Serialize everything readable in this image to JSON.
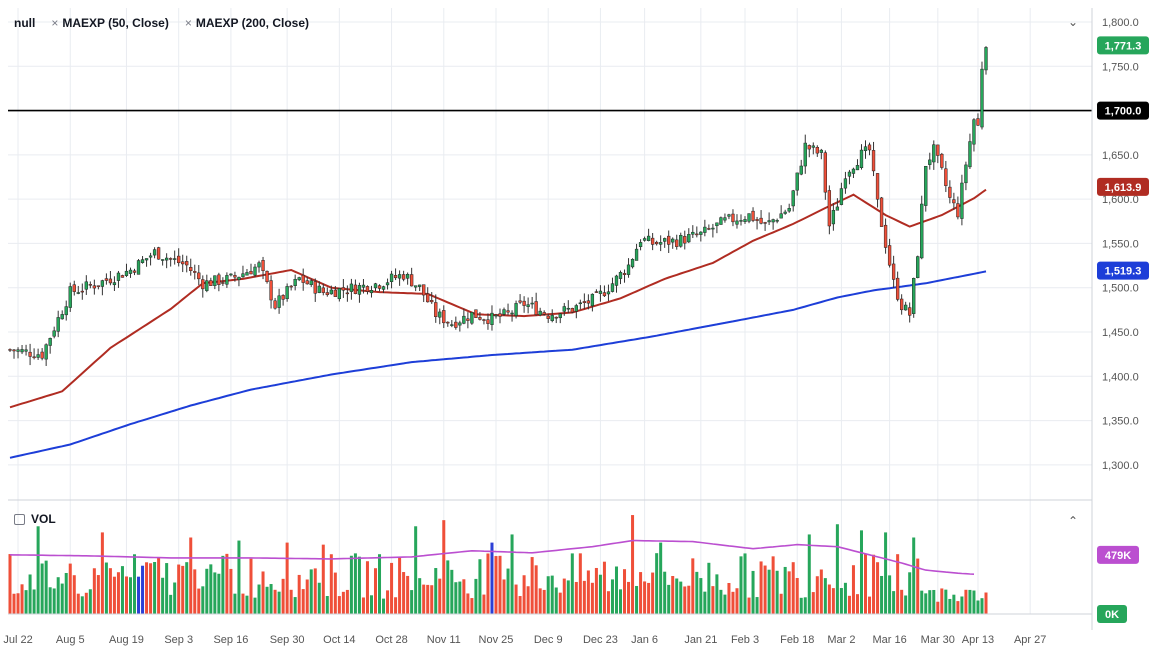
{
  "legend": {
    "symbol": "null",
    "ma1": "MAEXP (50, Close)",
    "ma2": "MAEXP (200, Close)",
    "remove_glyph": "×"
  },
  "volume_label": "VOL",
  "icons": {
    "collapse_main": "chevron-down-icon",
    "collapse_volume": "chevron-up-icon"
  },
  "colors": {
    "up": "#26a65b",
    "down": "#ef4f39",
    "neutral": "#2b3fd6",
    "ma50": "#b02c22",
    "ma200": "#1d3ed8",
    "vol_ma": "#bb4fd0",
    "line": "#000000",
    "grid": "#e9ecf1"
  },
  "badges": {
    "last": "1,771.3",
    "line_1700": "1,700.0",
    "ma50": "1,613.9",
    "ma200": "1,519.3",
    "vol_ma": "479K",
    "vol_zero": "0K"
  },
  "chart_data": {
    "type": "candlestick",
    "y_axis": {
      "range": [
        1275,
        1800
      ],
      "ticks": [
        "1,800.0",
        "1,750.0",
        "1,700.0",
        "1,650.0",
        "1,600.0",
        "1,550.0",
        "1,500.0",
        "1,450.0",
        "1,400.0",
        "1,350.0",
        "1,300.0"
      ],
      "tick_values": [
        1800,
        1750,
        1700,
        1650,
        1600,
        1550,
        1500,
        1450,
        1400,
        1350,
        1300
      ]
    },
    "x_axis": {
      "labels": [
        "Jul 22",
        "Aug 5",
        "Aug 19",
        "Sep 3",
        "Sep 16",
        "Sep 30",
        "Oct 14",
        "Oct 28",
        "Nov 11",
        "Nov 25",
        "Dec 9",
        "Dec 23",
        "Jan 6",
        "Jan 21",
        "Feb 3",
        "Feb 18",
        "Mar 2",
        "Mar 16",
        "Mar 30",
        "Apr 13",
        "Apr 27"
      ],
      "label_bar_index": [
        2,
        15,
        29,
        42,
        55,
        69,
        82,
        95,
        108,
        121,
        134,
        147,
        158,
        172,
        183,
        196,
        207,
        219,
        231,
        241,
        254
      ]
    },
    "horizontal_line": 1700,
    "last_close": 1771.3,
    "ma50_last": 1613.9,
    "ma200_last": 1519.3,
    "ma50_anchors": [
      [
        0,
        1365
      ],
      [
        13,
        1383
      ],
      [
        25,
        1432
      ],
      [
        40,
        1476
      ],
      [
        48,
        1505
      ],
      [
        58,
        1510
      ],
      [
        70,
        1520
      ],
      [
        80,
        1500
      ],
      [
        92,
        1495
      ],
      [
        104,
        1493
      ],
      [
        116,
        1470
      ],
      [
        128,
        1468
      ],
      [
        140,
        1472
      ],
      [
        152,
        1488
      ],
      [
        163,
        1510
      ],
      [
        175,
        1528
      ],
      [
        185,
        1553
      ],
      [
        195,
        1572
      ],
      [
        203,
        1590
      ],
      [
        210,
        1605
      ],
      [
        218,
        1582
      ],
      [
        224,
        1569
      ],
      [
        232,
        1582
      ],
      [
        240,
        1601
      ],
      [
        244,
        1613.9
      ]
    ],
    "ma200_anchors": [
      [
        0,
        1308
      ],
      [
        15,
        1323
      ],
      [
        30,
        1346
      ],
      [
        45,
        1367
      ],
      [
        60,
        1385
      ],
      [
        80,
        1402
      ],
      [
        100,
        1416
      ],
      [
        120,
        1424
      ],
      [
        140,
        1430
      ],
      [
        160,
        1445
      ],
      [
        180,
        1462
      ],
      [
        195,
        1475
      ],
      [
        206,
        1489
      ],
      [
        215,
        1497
      ],
      [
        228,
        1505
      ],
      [
        244,
        1519.3
      ]
    ],
    "price_anchors": [
      [
        0,
        1430
      ],
      [
        8,
        1425
      ],
      [
        15,
        1495
      ],
      [
        22,
        1505
      ],
      [
        30,
        1520
      ],
      [
        36,
        1540
      ],
      [
        44,
        1525
      ],
      [
        48,
        1505
      ],
      [
        55,
        1510
      ],
      [
        62,
        1525
      ],
      [
        66,
        1480
      ],
      [
        72,
        1510
      ],
      [
        78,
        1495
      ],
      [
        86,
        1500
      ],
      [
        92,
        1505
      ],
      [
        98,
        1515
      ],
      [
        102,
        1500
      ],
      [
        106,
        1470
      ],
      [
        110,
        1460
      ],
      [
        115,
        1470
      ],
      [
        120,
        1465
      ],
      [
        124,
        1470
      ],
      [
        128,
        1482
      ],
      [
        134,
        1470
      ],
      [
        140,
        1476
      ],
      [
        146,
        1488
      ],
      [
        150,
        1505
      ],
      [
        154,
        1525
      ],
      [
        157,
        1555
      ],
      [
        160,
        1550
      ],
      [
        166,
        1553
      ],
      [
        172,
        1560
      ],
      [
        178,
        1575
      ],
      [
        184,
        1582
      ],
      [
        188,
        1570
      ],
      [
        194,
        1590
      ],
      [
        198,
        1660
      ],
      [
        202,
        1650
      ],
      [
        204,
        1570
      ],
      [
        206,
        1595
      ],
      [
        208,
        1630
      ],
      [
        212,
        1650
      ],
      [
        214,
        1655
      ],
      [
        216,
        1595
      ],
      [
        218,
        1550
      ],
      [
        220,
        1505
      ],
      [
        222,
        1480
      ],
      [
        224,
        1470
      ],
      [
        226,
        1540
      ],
      [
        228,
        1640
      ],
      [
        230,
        1655
      ],
      [
        232,
        1630
      ],
      [
        234,
        1600
      ],
      [
        236,
        1585
      ],
      [
        238,
        1640
      ],
      [
        240,
        1690
      ],
      [
        241,
        1682
      ],
      [
        242,
        1750
      ],
      [
        243,
        1771.3
      ]
    ],
    "volume": {
      "range_max": 1000000,
      "ma_last_k": 479,
      "ma_anchors": [
        [
          0,
          0.58
        ],
        [
          20,
          0.57
        ],
        [
          40,
          0.55
        ],
        [
          60,
          0.55
        ],
        [
          80,
          0.54
        ],
        [
          100,
          0.56
        ],
        [
          115,
          0.62
        ],
        [
          130,
          0.6
        ],
        [
          145,
          0.66
        ],
        [
          155,
          0.72
        ],
        [
          170,
          0.71
        ],
        [
          185,
          0.64
        ],
        [
          196,
          0.68
        ],
        [
          206,
          0.66
        ],
        [
          214,
          0.58
        ],
        [
          222,
          0.5
        ],
        [
          228,
          0.43
        ],
        [
          236,
          0.4
        ],
        [
          240,
          0.39
        ]
      ],
      "spikes": [
        [
          7,
          0.86
        ],
        [
          23,
          0.8
        ],
        [
          45,
          0.75
        ],
        [
          57,
          0.72
        ],
        [
          69,
          0.7
        ],
        [
          78,
          0.68
        ],
        [
          101,
          0.86
        ],
        [
          108,
          0.92
        ],
        [
          120,
          0.7
        ],
        [
          125,
          0.78
        ],
        [
          155,
          0.97
        ],
        [
          162,
          0.7
        ],
        [
          199,
          0.78
        ],
        [
          206,
          0.88
        ],
        [
          212,
          0.82
        ],
        [
          218,
          0.8
        ],
        [
          225,
          0.75
        ]
      ]
    }
  }
}
